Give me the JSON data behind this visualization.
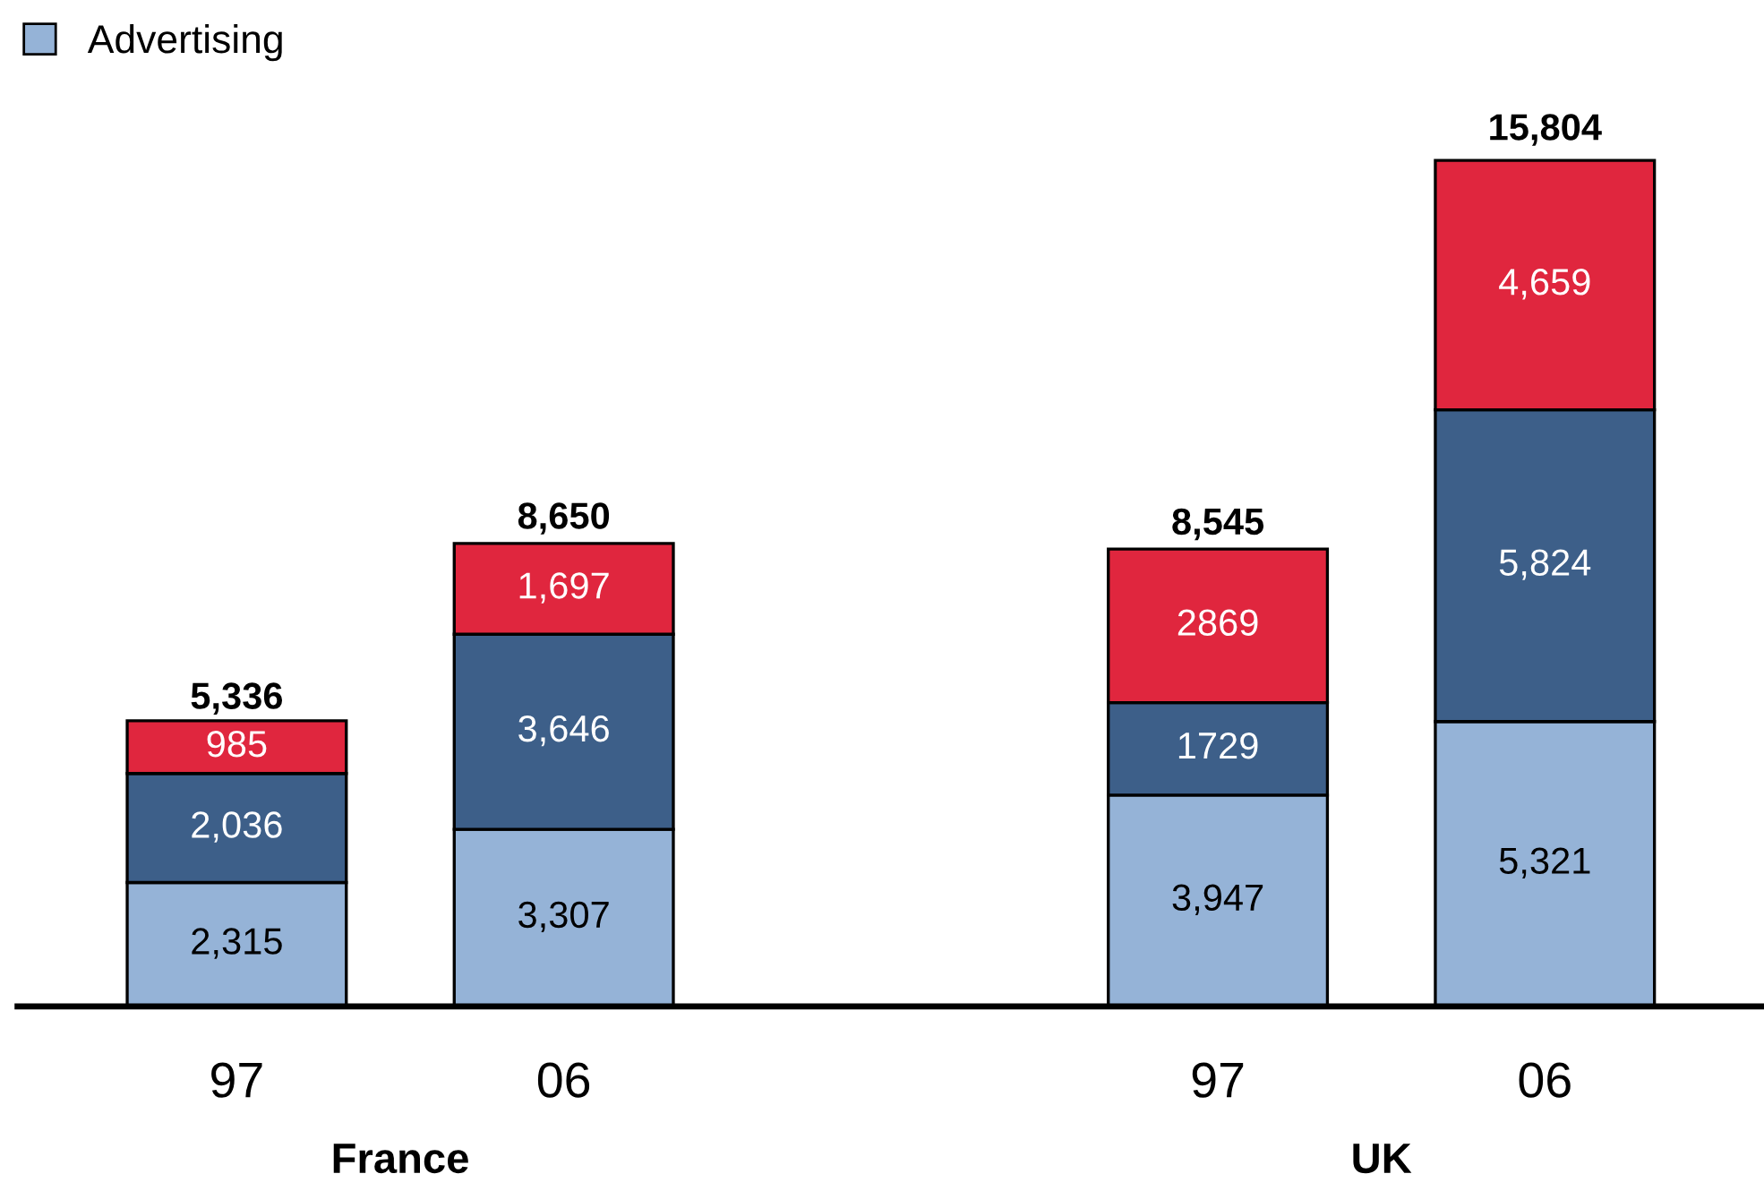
{
  "chart_data": {
    "type": "bar",
    "stacked": true,
    "categories": [
      "97",
      "06",
      null,
      "97",
      "06"
    ],
    "series": [
      {
        "name": "Advertising",
        "color": "#95b3d7",
        "values": [
          2315,
          3307,
          null,
          3947,
          5321
        ],
        "value_labels": [
          "2,315",
          "3,307",
          null,
          "3,947",
          "5,321"
        ]
      },
      {
        "color": "#3d5f89",
        "values": [
          2036,
          3646,
          null,
          1729,
          5824
        ],
        "value_labels": [
          "2,036",
          "3,646",
          null,
          "1729",
          "5,824"
        ]
      },
      {
        "color": "#e0263e",
        "values": [
          985,
          1697,
          null,
          2869,
          4659
        ],
        "value_labels": [
          "985",
          "1,697",
          null,
          "2869",
          "4,659"
        ]
      }
    ],
    "totals": [
      "5,336",
      "8,650",
      null,
      "8,545",
      "15,804"
    ],
    "annotations": [
      "France",
      "UK"
    ],
    "legend": "top left",
    "grid": false
  }
}
